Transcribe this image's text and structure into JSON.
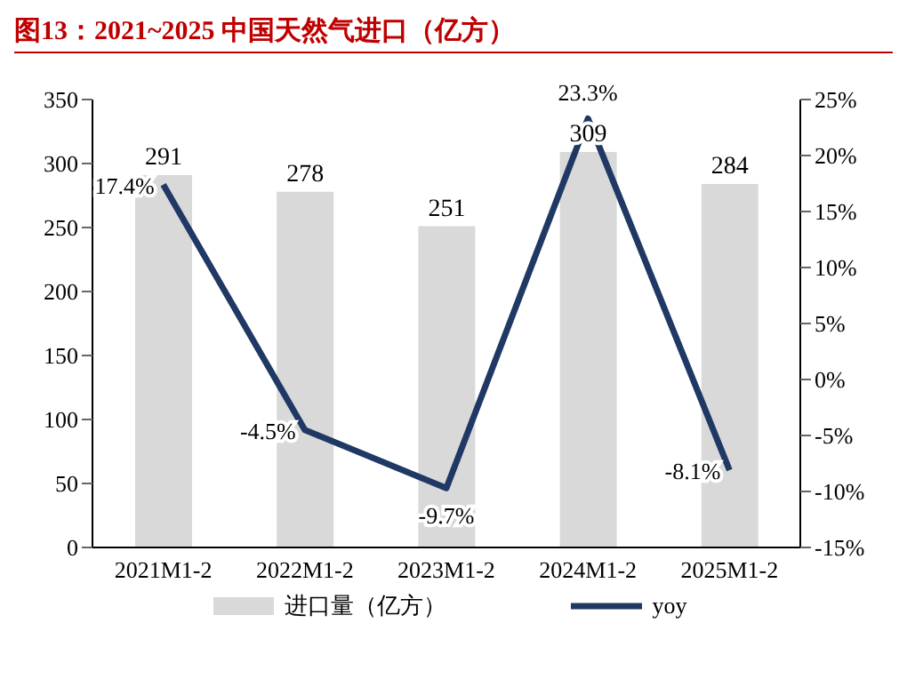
{
  "chart_data": {
    "type": "bar",
    "title": "图13：2021~2025 中国天然气进口（亿方）",
    "categories": [
      "2021M1-2",
      "2022M1-2",
      "2023M1-2",
      "2024M1-2",
      "2025M1-2"
    ],
    "series": [
      {
        "name": "进口量（亿方）",
        "color": "#d9d9d9",
        "values": [
          291,
          278,
          251,
          309,
          284
        ],
        "value_labels": [
          "291",
          "278",
          "251",
          "309",
          "284"
        ]
      },
      {
        "name": "yoy",
        "type": "line",
        "axis": "y2",
        "color": "#1f3864",
        "values": [
          17.4,
          -4.5,
          -9.7,
          23.3,
          -8.1
        ],
        "value_labels": [
          "17.4%",
          "-4.5%",
          "-9.7%",
          "23.3%",
          "-8.1%"
        ]
      }
    ],
    "ylim": [
      0,
      350
    ],
    "yticks": [
      0,
      50,
      100,
      150,
      200,
      250,
      300,
      350
    ],
    "y2lim": [
      -15,
      25
    ],
    "y2ticks": [
      {
        "value": -15,
        "label": "-15%"
      },
      {
        "value": -10,
        "label": "-10%"
      },
      {
        "value": -5,
        "label": "-5%"
      },
      {
        "value": 0,
        "label": "0%"
      },
      {
        "value": 5,
        "label": "5%"
      },
      {
        "value": 10,
        "label": "10%"
      },
      {
        "value": 15,
        "label": "15%"
      },
      {
        "value": 20,
        "label": "20%"
      },
      {
        "value": 25,
        "label": "25%"
      }
    ],
    "grid": false,
    "legend": "bottom",
    "marker": "none",
    "line_style": "solid"
  }
}
